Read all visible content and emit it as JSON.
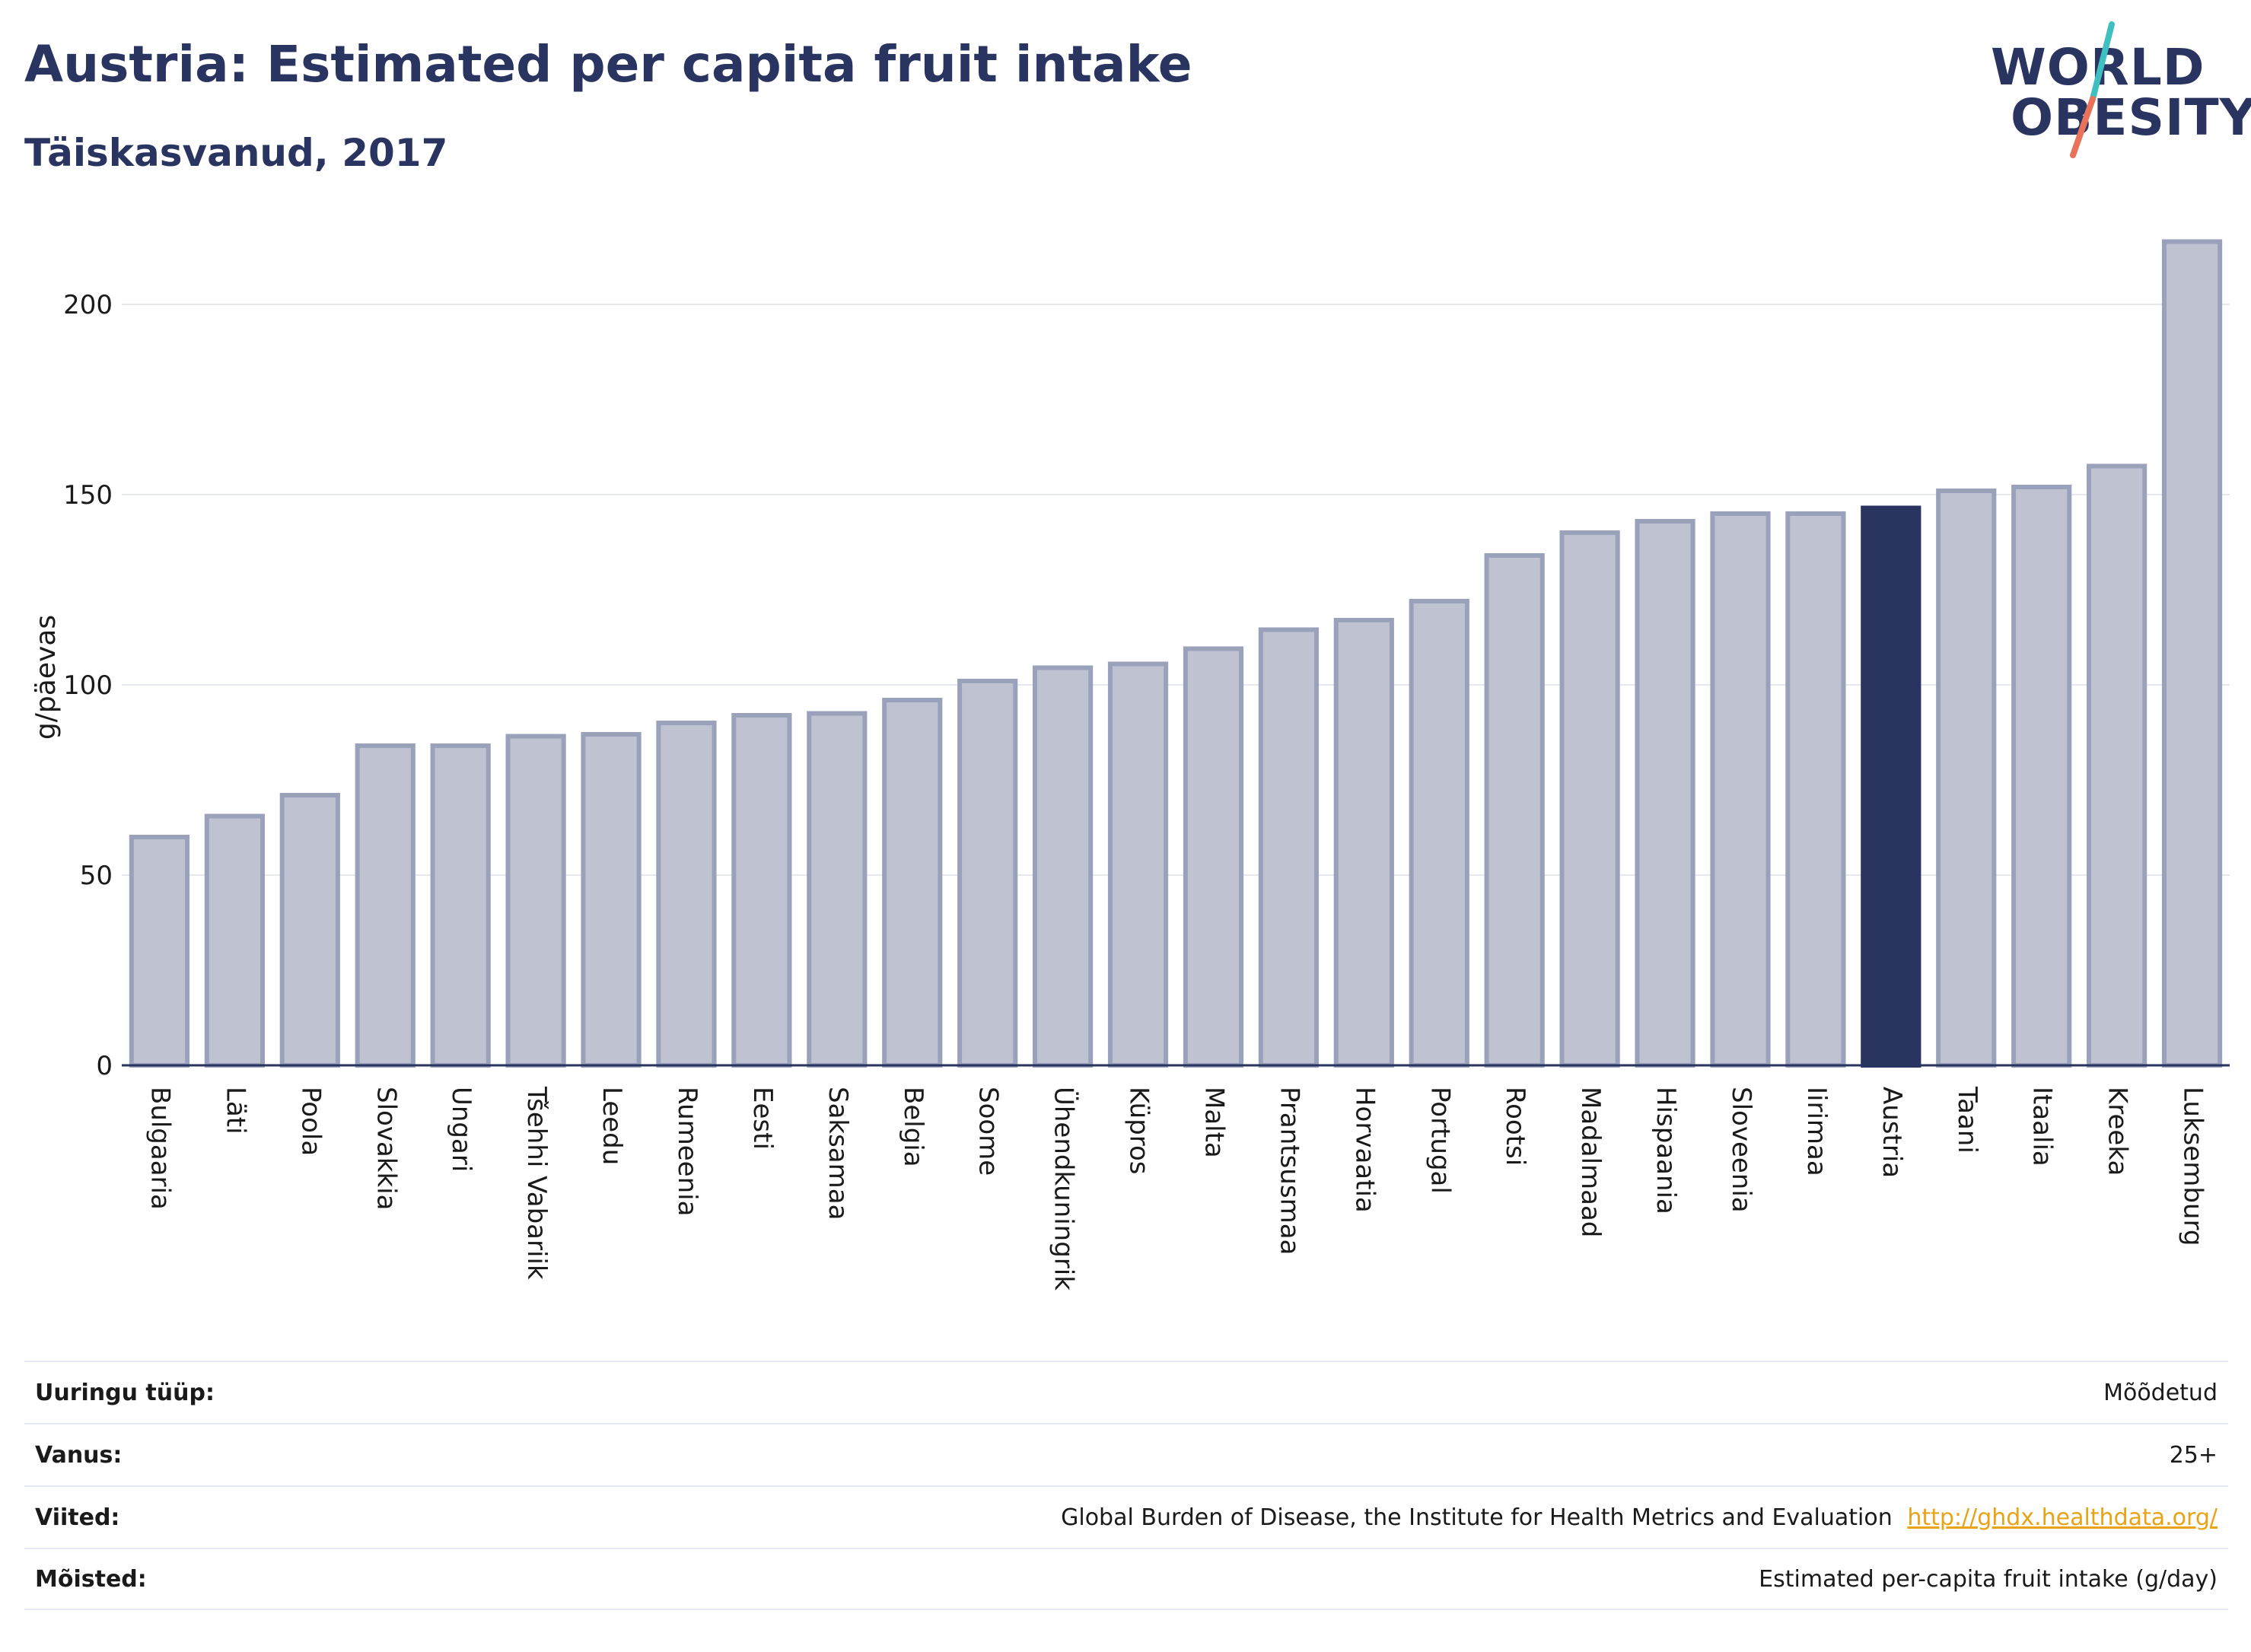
{
  "header": {
    "title": "Austria: Estimated per capita fruit intake",
    "subtitle": "Täiskasvanud, 2017"
  },
  "logo": {
    "line1": "WORLD",
    "line2": "OBESITY",
    "slash_colors": [
      "#3fbfbf",
      "#e8735a"
    ]
  },
  "colors": {
    "bar_default_fill": "#bfc3d1",
    "bar_default_stroke": "#9aa1ba",
    "bar_highlight": "#2a3460",
    "gridline": "#e6e8f0",
    "axis": "#2a3460"
  },
  "chart_data": {
    "type": "bar",
    "ylabel": "g/päevas",
    "ylim": [
      0,
      220
    ],
    "yticks": [
      0,
      50,
      100,
      150,
      200
    ],
    "grid": true,
    "highlight": "Austria",
    "categories": [
      "Bulgaaria",
      "Läti",
      "Poola",
      "Slovakkia",
      "Ungari",
      "Tšehhi Vabariik",
      "Leedu",
      "Rumeenia",
      "Eesti",
      "Saksamaa",
      "Belgia",
      "Soome",
      "Ühendkuningrik",
      "Küpros",
      "Malta",
      "Prantsusmaa",
      "Horvaatia",
      "Portugal",
      "Rootsi",
      "Madalmaad",
      "Hispaania",
      "Sloveenia",
      "Iirimaa",
      "Austria",
      "Taani",
      "Itaalia",
      "Kreeka",
      "Luksemburg"
    ],
    "values": [
      60,
      65.5,
      71,
      84,
      84,
      86.5,
      87,
      90,
      92,
      92.5,
      96,
      101,
      104.5,
      105.5,
      109.5,
      114.5,
      117,
      122,
      134,
      140,
      143,
      145,
      145,
      146.5,
      151,
      152,
      157.5,
      216.5
    ]
  },
  "info": [
    {
      "key": "Uuringu tüüp:",
      "value": "Mõõdetud"
    },
    {
      "key": "Vanus:",
      "value": "25+"
    },
    {
      "key": "Viited:",
      "value": "Global Burden of Disease, the Institute for Health Metrics and Evaluation",
      "link": "http://ghdx.healthdata.org/"
    },
    {
      "key": "Mõisted:",
      "value": "Estimated per-capita fruit intake (g/day)"
    }
  ]
}
